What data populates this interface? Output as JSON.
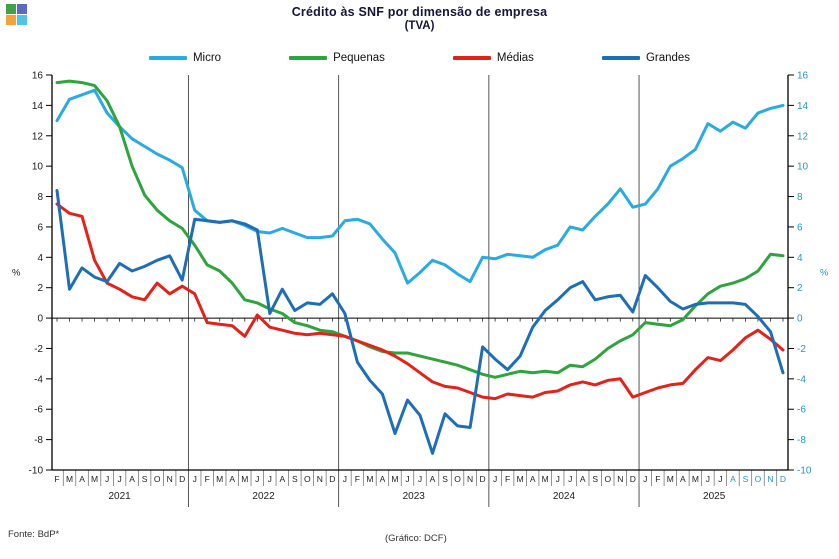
{
  "app_icon": {
    "colors": [
      "#43A047",
      "#5B6ABF",
      "#F2A33C",
      "#4FC3E8"
    ]
  },
  "title": {
    "line1": "Crédito às SNF por dimensão de empresa",
    "line2": "(TVA)"
  },
  "legend": {
    "items": [
      {
        "label": "Micro",
        "color": "#29ABE2"
      },
      {
        "label": "Pequenas",
        "color": "#2EA43C"
      },
      {
        "label": "Médias",
        "color": "#E2231A"
      },
      {
        "label": "Grandes",
        "color": "#1D6EB7"
      }
    ]
  },
  "footer": {
    "source": "Fonte: BdP*",
    "credit": "(Gráfico: DCF)"
  },
  "chart_data": {
    "type": "line",
    "title": "Crédito às SNF por dimensão de empresa (TVA)",
    "ylabel_left": "%",
    "ylabel_right": "%",
    "ylim": [
      -10,
      16
    ],
    "ytick_step": 2,
    "y_ticks": [
      16,
      14,
      12,
      10,
      8,
      6,
      4,
      2,
      0,
      -2,
      -4,
      -6,
      -8,
      -10
    ],
    "grid": "none",
    "legend_position": "top",
    "x_start": "2021-02",
    "x_end": "2025-12",
    "years": [
      {
        "label": "2021",
        "months": 11
      },
      {
        "label": "2022",
        "months": 12
      },
      {
        "label": "2023",
        "months": 12
      },
      {
        "label": "2024",
        "months": 12
      },
      {
        "label": "2025",
        "months": 12
      }
    ],
    "month_letters": [
      "F",
      "M",
      "A",
      "M",
      "J",
      "J",
      "A",
      "S",
      "O",
      "N",
      "D",
      "J",
      "F",
      "M",
      "A",
      "M",
      "J",
      "J",
      "A",
      "S",
      "O",
      "N",
      "D",
      "J",
      "F",
      "M",
      "A",
      "M",
      "J",
      "J",
      "A",
      "S",
      "O",
      "N",
      "D",
      "J",
      "F",
      "M",
      "A",
      "M",
      "J",
      "J",
      "A",
      "S",
      "O",
      "N",
      "D",
      "J",
      "F",
      "M",
      "A",
      "M",
      "J",
      "J",
      "A",
      "S",
      "O",
      "N",
      "D"
    ],
    "highlight_from_index": 54,
    "highlight_color": "#2398C2",
    "axis_label_color_left": "#1a1a1a",
    "axis_label_color_right": "#2398C2",
    "series": [
      {
        "name": "Micro",
        "color": "#29ABE2",
        "values": [
          13.0,
          14.4,
          14.7,
          15.0,
          13.5,
          12.6,
          11.8,
          11.3,
          10.8,
          10.4,
          9.9,
          7.1,
          6.4,
          6.3,
          6.4,
          6.1,
          5.7,
          5.6,
          5.9,
          5.6,
          5.3,
          5.3,
          5.4,
          6.4,
          6.5,
          6.2,
          5.2,
          4.3,
          2.3,
          3.0,
          3.8,
          3.5,
          2.9,
          2.4,
          4.0,
          3.9,
          4.2,
          4.1,
          4.0,
          4.5,
          4.8,
          6.0,
          5.8,
          6.7,
          7.5,
          8.5,
          7.3,
          7.5,
          8.5,
          10.0,
          10.5,
          11.1,
          12.8,
          12.3,
          12.9,
          12.5,
          13.5,
          13.8,
          14.0
        ]
      },
      {
        "name": "Pequenas",
        "color": "#2EA43C",
        "values": [
          15.5,
          15.6,
          15.5,
          15.3,
          14.3,
          12.6,
          10.0,
          8.1,
          7.1,
          6.4,
          5.9,
          4.8,
          3.5,
          3.1,
          2.3,
          1.2,
          1.0,
          0.6,
          0.3,
          -0.3,
          -0.5,
          -0.8,
          -0.9,
          -1.2,
          -1.5,
          -1.9,
          -2.2,
          -2.3,
          -2.3,
          -2.5,
          -2.7,
          -2.9,
          -3.1,
          -3.4,
          -3.7,
          -3.9,
          -3.7,
          -3.5,
          -3.6,
          -3.5,
          -3.6,
          -3.1,
          -3.2,
          -2.7,
          -2.0,
          -1.5,
          -1.1,
          -0.3,
          -0.4,
          -0.5,
          -0.1,
          0.8,
          1.6,
          2.1,
          2.3,
          2.6,
          3.1,
          4.2,
          4.1
        ]
      },
      {
        "name": "Médias",
        "color": "#E2231A",
        "values": [
          7.5,
          6.9,
          6.7,
          3.8,
          2.3,
          1.9,
          1.4,
          1.2,
          2.3,
          1.6,
          2.1,
          1.6,
          -0.3,
          -0.4,
          -0.5,
          -1.2,
          0.2,
          -0.6,
          -0.8,
          -1.0,
          -1.1,
          -1.0,
          -1.1,
          -1.2,
          -1.5,
          -1.8,
          -2.1,
          -2.5,
          -3.0,
          -3.6,
          -4.2,
          -4.5,
          -4.6,
          -4.9,
          -5.2,
          -5.3,
          -5.0,
          -5.1,
          -5.2,
          -4.9,
          -4.8,
          -4.4,
          -4.2,
          -4.4,
          -4.1,
          -4.0,
          -5.2,
          -4.9,
          -4.6,
          -4.4,
          -4.3,
          -3.4,
          -2.6,
          -2.8,
          -2.1,
          -1.3,
          -0.8,
          -1.4,
          -2.1
        ]
      },
      {
        "name": "Grandes",
        "color": "#1D6EB7",
        "values": [
          8.4,
          1.9,
          3.3,
          2.7,
          2.4,
          3.6,
          3.1,
          3.4,
          3.8,
          4.1,
          2.5,
          6.5,
          6.4,
          6.3,
          6.4,
          6.2,
          5.8,
          0.3,
          1.9,
          0.5,
          1.0,
          0.9,
          1.6,
          0.3,
          -2.9,
          -4.1,
          -5.0,
          -7.6,
          -5.4,
          -6.4,
          -8.9,
          -6.3,
          -7.1,
          -7.2,
          -1.9,
          -2.7,
          -3.4,
          -2.5,
          -0.6,
          0.5,
          1.2,
          2.0,
          2.4,
          1.2,
          1.4,
          1.5,
          0.4,
          2.8,
          2.0,
          1.1,
          0.6,
          0.9,
          1.0,
          1.0,
          1.0,
          0.9,
          0.1,
          -0.9,
          -3.6
        ]
      }
    ]
  }
}
